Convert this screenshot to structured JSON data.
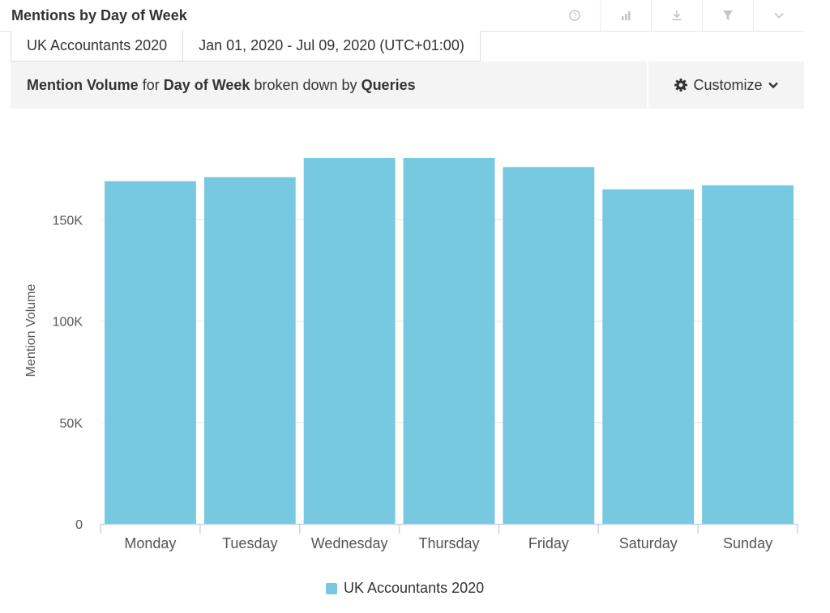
{
  "header": {
    "title": "Mentions by Day of Week",
    "tools": [
      "help-icon",
      "chart-type-icon",
      "download-icon",
      "filter-icon",
      "chevron-down-icon"
    ]
  },
  "filters": {
    "query": "UK Accountants 2020",
    "date_range": "Jan 01, 2020 - Jul 09, 2020 (UTC+01:00)"
  },
  "description": {
    "metric": "Mention Volume",
    "for_word": "for",
    "dimension": "Day of Week",
    "broken_word": "broken down by",
    "breakdown": "Queries"
  },
  "customize": {
    "label": "Customize",
    "icon": "gear-icon"
  },
  "colors": {
    "bar": "#76c9e1",
    "axis": "#c8d7e6",
    "grid": "#e6e6e6",
    "tools": "#c4c4c4"
  },
  "chart_data": {
    "type": "bar",
    "categories": [
      "Monday",
      "Tuesday",
      "Wednesday",
      "Thursday",
      "Friday",
      "Saturday",
      "Sunday"
    ],
    "series": [
      {
        "name": "UK Accountants 2020",
        "values": [
          169000,
          171000,
          180500,
          180500,
          176000,
          165000,
          167000
        ]
      }
    ],
    "ylabel": "Mention Volume",
    "xlabel": "",
    "ylim": [
      0,
      180500
    ],
    "yticks": [
      0,
      50000,
      100000,
      150000
    ],
    "ytick_labels": [
      "0",
      "50K",
      "100K",
      "150K"
    ],
    "grid": true,
    "legend_position": "bottom-center"
  }
}
